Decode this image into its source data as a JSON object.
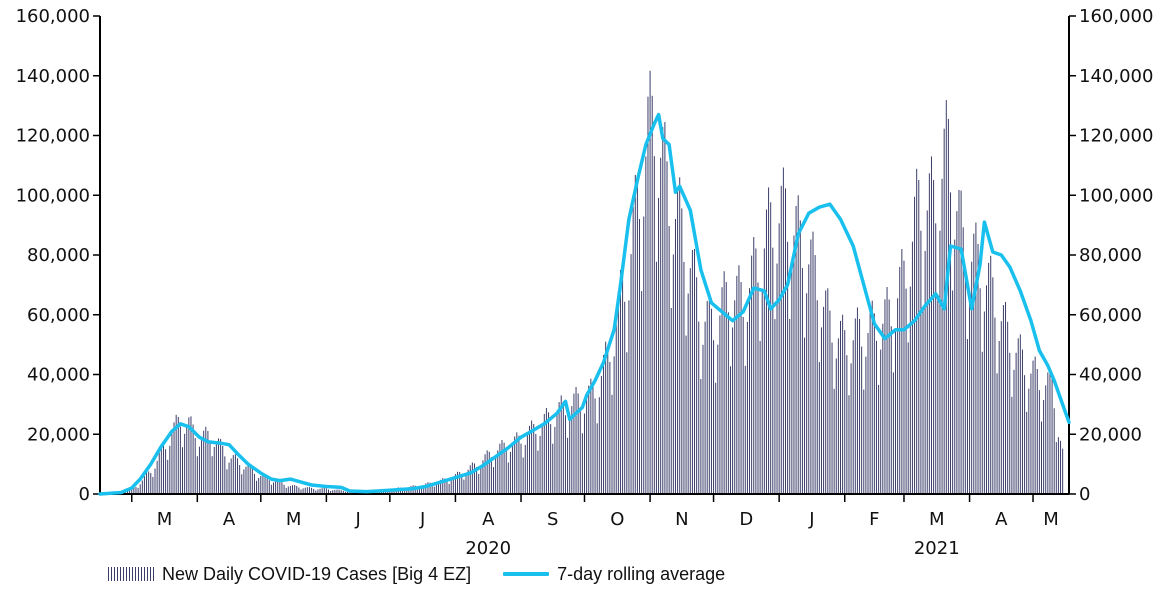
{
  "chart_data": {
    "type": "bar",
    "title": "",
    "xlabel": "",
    "ylabel": "",
    "ylim": [
      0,
      160000
    ],
    "yticks": [
      0,
      20000,
      40000,
      60000,
      80000,
      100000,
      120000,
      140000,
      160000
    ],
    "ytick_labels": [
      "0",
      "20,000",
      "40,000",
      "60,000",
      "80,000",
      "100,000",
      "120,000",
      "140,000",
      "160,000"
    ],
    "x_range": [
      "2020-02-15",
      "2021-05-18"
    ],
    "month_labels": [
      "M",
      "A",
      "M",
      "J",
      "J",
      "A",
      "S",
      "O",
      "N",
      "D",
      "J",
      "F",
      "M",
      "A",
      "M"
    ],
    "month_starts": [
      "2020-03-01",
      "2020-04-01",
      "2020-05-01",
      "2020-06-01",
      "2020-07-01",
      "2020-08-01",
      "2020-09-01",
      "2020-10-01",
      "2020-11-01",
      "2020-12-01",
      "2021-01-01",
      "2021-02-01",
      "2021-03-01",
      "2021-04-01",
      "2021-05-01"
    ],
    "year_labels": [
      {
        "label": "2020",
        "month_index": 5
      },
      {
        "label": "2021",
        "month_index": 12
      }
    ],
    "grid": false,
    "legend_position": "bottom-left",
    "series": [
      {
        "name": "New Daily COVID-19 Cases [Big 4 EZ]",
        "type": "bar",
        "color": "#3c3e6a",
        "values": [
          [
            "2020-02-25",
            300
          ],
          [
            "2020-03-01",
            1500
          ],
          [
            "2020-03-05",
            4500
          ],
          [
            "2020-03-10",
            9000
          ],
          [
            "2020-03-15",
            16000
          ],
          [
            "2020-03-20",
            24000
          ],
          [
            "2020-03-24",
            29000
          ],
          [
            "2020-03-28",
            27000
          ],
          [
            "2020-04-02",
            22000
          ],
          [
            "2020-04-08",
            23000
          ],
          [
            "2020-04-15",
            15000
          ],
          [
            "2020-04-22",
            12000
          ],
          [
            "2020-04-30",
            7500
          ],
          [
            "2020-05-08",
            5000
          ],
          [
            "2020-05-15",
            3200
          ],
          [
            "2020-05-25",
            2200
          ],
          [
            "2020-06-01",
            2000
          ],
          [
            "2020-06-08",
            1400
          ],
          [
            "2020-06-15",
            1200
          ],
          [
            "2020-06-25",
            1400
          ],
          [
            "2020-07-05",
            2200
          ],
          [
            "2020-07-15",
            3200
          ],
          [
            "2020-07-25",
            5000
          ],
          [
            "2020-08-01",
            7000
          ],
          [
            "2020-08-10",
            11000
          ],
          [
            "2020-08-20",
            17000
          ],
          [
            "2020-08-31",
            21000
          ],
          [
            "2020-09-10",
            27000
          ],
          [
            "2020-09-20",
            33000
          ],
          [
            "2020-09-30",
            37000
          ],
          [
            "2020-10-05",
            39000
          ],
          [
            "2020-10-12",
            53000
          ],
          [
            "2020-10-18",
            75000
          ],
          [
            "2020-10-22",
            90000
          ],
          [
            "2020-10-27",
            118000
          ],
          [
            "2020-10-31",
            140000
          ],
          [
            "2020-11-03",
            145000
          ],
          [
            "2020-11-06",
            134000
          ],
          [
            "2020-11-10",
            115000
          ],
          [
            "2020-11-15",
            106000
          ],
          [
            "2020-11-20",
            90000
          ],
          [
            "2020-11-25",
            70000
          ],
          [
            "2020-12-01",
            66000
          ],
          [
            "2020-12-08",
            78000
          ],
          [
            "2020-12-15",
            76000
          ],
          [
            "2020-12-20",
            86000
          ],
          [
            "2020-12-28",
            105000
          ],
          [
            "2021-01-04",
            110000
          ],
          [
            "2021-01-08",
            103000
          ],
          [
            "2021-01-12",
            97000
          ],
          [
            "2021-01-18",
            86000
          ],
          [
            "2021-01-25",
            66000
          ],
          [
            "2021-02-01",
            59000
          ],
          [
            "2021-02-08",
            63000
          ],
          [
            "2021-02-15",
            65000
          ],
          [
            "2021-02-22",
            70000
          ],
          [
            "2021-03-01",
            84000
          ],
          [
            "2021-03-08",
            113000
          ],
          [
            "2021-03-15",
            113000
          ],
          [
            "2021-03-22",
            135000
          ],
          [
            "2021-03-29",
            96000
          ],
          [
            "2021-04-05",
            90000
          ],
          [
            "2021-04-12",
            78000
          ],
          [
            "2021-04-19",
            62000
          ],
          [
            "2021-04-26",
            52000
          ],
          [
            "2021-05-03",
            45000
          ],
          [
            "2021-05-10",
            42000
          ],
          [
            "2021-05-15",
            16000
          ]
        ]
      },
      {
        "name": "7-day rolling average",
        "type": "line",
        "color": "#19c0ee",
        "values": [
          [
            "2020-02-15",
            0
          ],
          [
            "2020-02-25",
            500
          ],
          [
            "2020-03-01",
            2000
          ],
          [
            "2020-03-05",
            5000
          ],
          [
            "2020-03-10",
            10000
          ],
          [
            "2020-03-15",
            16000
          ],
          [
            "2020-03-20",
            21000
          ],
          [
            "2020-03-24",
            23500
          ],
          [
            "2020-03-28",
            22500
          ],
          [
            "2020-04-02",
            19000
          ],
          [
            "2020-04-06",
            17500
          ],
          [
            "2020-04-12",
            17000
          ],
          [
            "2020-04-16",
            16500
          ],
          [
            "2020-04-20",
            13500
          ],
          [
            "2020-04-25",
            10000
          ],
          [
            "2020-05-01",
            7000
          ],
          [
            "2020-05-06",
            5000
          ],
          [
            "2020-05-10",
            4500
          ],
          [
            "2020-05-15",
            5000
          ],
          [
            "2020-05-20",
            4000
          ],
          [
            "2020-05-25",
            3000
          ],
          [
            "2020-06-01",
            2500
          ],
          [
            "2020-06-08",
            2200
          ],
          [
            "2020-06-12",
            1000
          ],
          [
            "2020-06-20",
            800
          ],
          [
            "2020-06-30",
            1200
          ],
          [
            "2020-07-06",
            1500
          ],
          [
            "2020-07-12",
            1800
          ],
          [
            "2020-07-18",
            2500
          ],
          [
            "2020-07-25",
            4000
          ],
          [
            "2020-08-01",
            5500
          ],
          [
            "2020-08-08",
            7000
          ],
          [
            "2020-08-14",
            9500
          ],
          [
            "2020-08-20",
            12500
          ],
          [
            "2020-08-26",
            15500
          ],
          [
            "2020-09-01",
            19000
          ],
          [
            "2020-09-06",
            21000
          ],
          [
            "2020-09-12",
            23500
          ],
          [
            "2020-09-18",
            27000
          ],
          [
            "2020-09-22",
            31000
          ],
          [
            "2020-09-24",
            25000
          ],
          [
            "2020-09-27",
            27000
          ],
          [
            "2020-09-30",
            29000
          ],
          [
            "2020-10-02",
            33000
          ],
          [
            "2020-10-06",
            38000
          ],
          [
            "2020-10-10",
            44000
          ],
          [
            "2020-10-15",
            55000
          ],
          [
            "2020-10-18",
            70000
          ],
          [
            "2020-10-22",
            92000
          ],
          [
            "2020-10-26",
            105000
          ],
          [
            "2020-10-30",
            117000
          ],
          [
            "2020-11-03",
            124000
          ],
          [
            "2020-11-05",
            127000
          ],
          [
            "2020-11-07",
            119000
          ],
          [
            "2020-11-10",
            117000
          ],
          [
            "2020-11-13",
            101000
          ],
          [
            "2020-11-15",
            103000
          ],
          [
            "2020-11-20",
            95000
          ],
          [
            "2020-11-25",
            75000
          ],
          [
            "2020-11-30",
            64000
          ],
          [
            "2020-12-05",
            61000
          ],
          [
            "2020-12-10",
            58000
          ],
          [
            "2020-12-15",
            61000
          ],
          [
            "2020-12-20",
            69000
          ],
          [
            "2020-12-25",
            68000
          ],
          [
            "2020-12-28",
            62000
          ],
          [
            "2021-01-01",
            65000
          ],
          [
            "2021-01-05",
            70000
          ],
          [
            "2021-01-10",
            87000
          ],
          [
            "2021-01-15",
            94000
          ],
          [
            "2021-01-20",
            96000
          ],
          [
            "2021-01-25",
            97000
          ],
          [
            "2021-01-30",
            92000
          ],
          [
            "2021-02-05",
            83000
          ],
          [
            "2021-02-10",
            70000
          ],
          [
            "2021-02-15",
            57000
          ],
          [
            "2021-02-20",
            52000
          ],
          [
            "2021-02-25",
            55000
          ],
          [
            "2021-03-01",
            55000
          ],
          [
            "2021-03-06",
            58000
          ],
          [
            "2021-03-11",
            63000
          ],
          [
            "2021-03-16",
            67000
          ],
          [
            "2021-03-20",
            62000
          ],
          [
            "2021-03-23",
            83000
          ],
          [
            "2021-03-28",
            82000
          ],
          [
            "2021-04-02",
            62000
          ],
          [
            "2021-04-06",
            77000
          ],
          [
            "2021-04-08",
            91000
          ],
          [
            "2021-04-12",
            81000
          ],
          [
            "2021-04-16",
            80000
          ],
          [
            "2021-04-20",
            76000
          ],
          [
            "2021-04-25",
            68000
          ],
          [
            "2021-04-30",
            58000
          ],
          [
            "2021-05-04",
            48000
          ],
          [
            "2021-05-08",
            43000
          ],
          [
            "2021-05-11",
            38000
          ],
          [
            "2021-05-14",
            32000
          ],
          [
            "2021-05-18",
            24000
          ]
        ]
      }
    ]
  }
}
